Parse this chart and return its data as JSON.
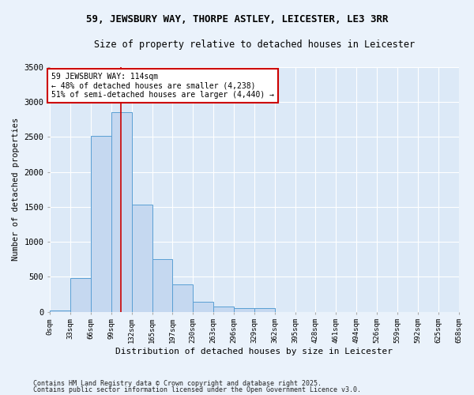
{
  "title1": "59, JEWSBURY WAY, THORPE ASTLEY, LEICESTER, LE3 3RR",
  "title2": "Size of property relative to detached houses in Leicester",
  "xlabel": "Distribution of detached houses by size in Leicester",
  "ylabel": "Number of detached properties",
  "bin_labels": [
    "0sqm",
    "33sqm",
    "66sqm",
    "99sqm",
    "132sqm",
    "165sqm",
    "197sqm",
    "230sqm",
    "263sqm",
    "296sqm",
    "329sqm",
    "362sqm",
    "395sqm",
    "428sqm",
    "461sqm",
    "494sqm",
    "526sqm",
    "559sqm",
    "592sqm",
    "625sqm",
    "658sqm"
  ],
  "bar_values": [
    20,
    480,
    2520,
    2850,
    1530,
    750,
    390,
    140,
    70,
    50,
    55,
    0,
    0,
    0,
    0,
    0,
    0,
    0,
    0,
    0
  ],
  "bar_color": "#c5d8f0",
  "bar_edge_color": "#5a9fd4",
  "bg_color": "#dce9f7",
  "fig_bg_color": "#eaf2fb",
  "grid_color": "#ffffff",
  "vline_x_sqm": 114,
  "bin_width": 33,
  "annotation_title": "59 JEWSBURY WAY: 114sqm",
  "annotation_line1": "← 48% of detached houses are smaller (4,238)",
  "annotation_line2": "51% of semi-detached houses are larger (4,440) →",
  "annotation_box_color": "#ffffff",
  "annotation_border_color": "#cc0000",
  "vline_color": "#cc0000",
  "footer1": "Contains HM Land Registry data © Crown copyright and database right 2025.",
  "footer2": "Contains public sector information licensed under the Open Government Licence v3.0.",
  "ylim": [
    0,
    3500
  ],
  "yticks": [
    0,
    500,
    1000,
    1500,
    2000,
    2500,
    3000,
    3500
  ]
}
